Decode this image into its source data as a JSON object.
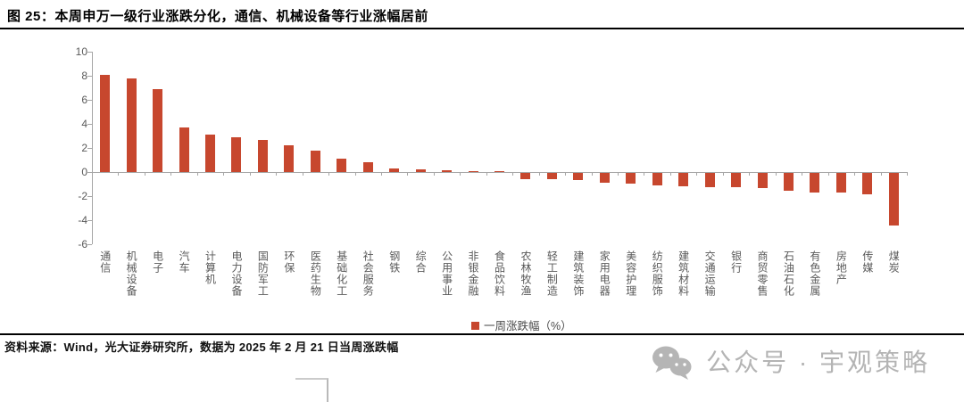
{
  "header": {
    "title": "图 25：本周申万一级行业涨跌分化，通信、机械设备等行业涨幅居前"
  },
  "chart_data": {
    "type": "bar",
    "title": "本周申万一级行业涨跌分化",
    "categories": [
      "通信",
      "机械设备",
      "电子",
      "汽车",
      "计算机",
      "电力设备",
      "国防军工",
      "环保",
      "医药生物",
      "基础化工",
      "社会服务",
      "钢铁",
      "综合",
      "公用事业",
      "非银金融",
      "食品饮料",
      "农林牧渔",
      "轻工制造",
      "建筑装饰",
      "家用电器",
      "美容护理",
      "纺织服饰",
      "建筑材料",
      "交通运输",
      "银行",
      "商贸零售",
      "石油石化",
      "有色金属",
      "房地产",
      "传媒",
      "煤炭"
    ],
    "values": [
      8.1,
      7.8,
      6.9,
      3.7,
      3.1,
      2.9,
      2.7,
      2.2,
      1.8,
      1.1,
      0.8,
      0.3,
      0.2,
      0.15,
      0.1,
      0.05,
      -0.5,
      -0.5,
      -0.6,
      -0.85,
      -0.9,
      -1.0,
      -1.1,
      -1.15,
      -1.2,
      -1.25,
      -1.5,
      -1.6,
      -1.65,
      -1.8,
      -4.4
    ],
    "legend": [
      "一周涨跌幅（%）"
    ],
    "legend_position": "bottom",
    "xlabel": "",
    "ylabel": "",
    "ylim": [
      -6,
      10
    ],
    "ytick_step": 2,
    "grid": false,
    "bar_color": "#C7472E",
    "axis_color": "#a6a6a6",
    "label_color": "#595959"
  },
  "footer": {
    "source": "资料来源：Wind，光大证券研究所，数据为 2025 年 2 月 21 日当周涨跌幅"
  },
  "watermark": {
    "icon": "wechat-icon",
    "text": "公众号 · 宇观策略"
  }
}
